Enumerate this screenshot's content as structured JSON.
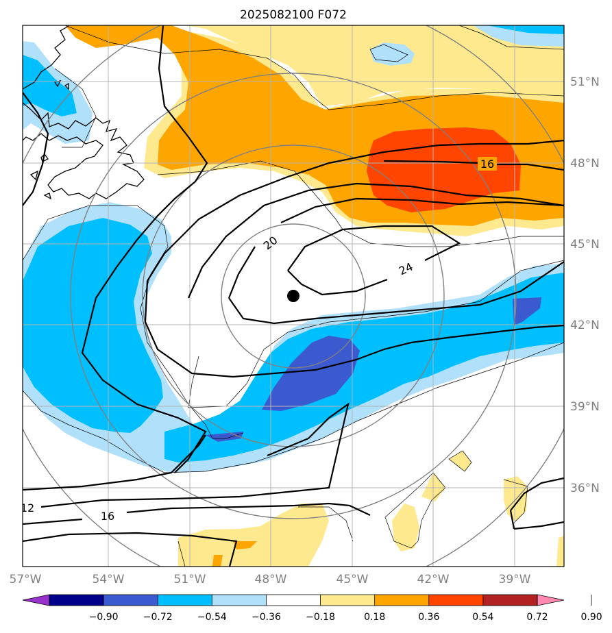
{
  "title": "2025082100 F072",
  "lat_labels": [
    "51°N",
    "48°N",
    "45°N",
    "42°N",
    "39°N",
    "36°N"
  ],
  "lon_labels": [
    "57°W",
    "54°W",
    "51°W",
    "48°W",
    "45°W",
    "42°W",
    "39°W"
  ],
  "contour_labels": [
    "16",
    "20",
    "24",
    "12",
    "16"
  ],
  "colorbar": {
    "tick_labels": [
      "−0.90",
      "−0.72",
      "−0.54",
      "−0.36",
      "−0.18",
      "0.18",
      "0.36",
      "0.54",
      "0.72",
      "0.90"
    ],
    "colors": [
      "#9932cc",
      "#00008b",
      "#3c5ad0",
      "#00bfff",
      "#b0e0fa",
      "#ffffff",
      "#ffe98f",
      "#ffa500",
      "#ff4500",
      "#b22222",
      "#ff88b0"
    ]
  },
  "fill_colors": {
    "light_blue": "#b0e0fa",
    "blue": "#00bfff",
    "dark_blue": "#3c5ad0",
    "light_yellow": "#ffe98f",
    "orange": "#ffa500",
    "red_orange": "#ff4500"
  },
  "storm_marker": "center-dot"
}
